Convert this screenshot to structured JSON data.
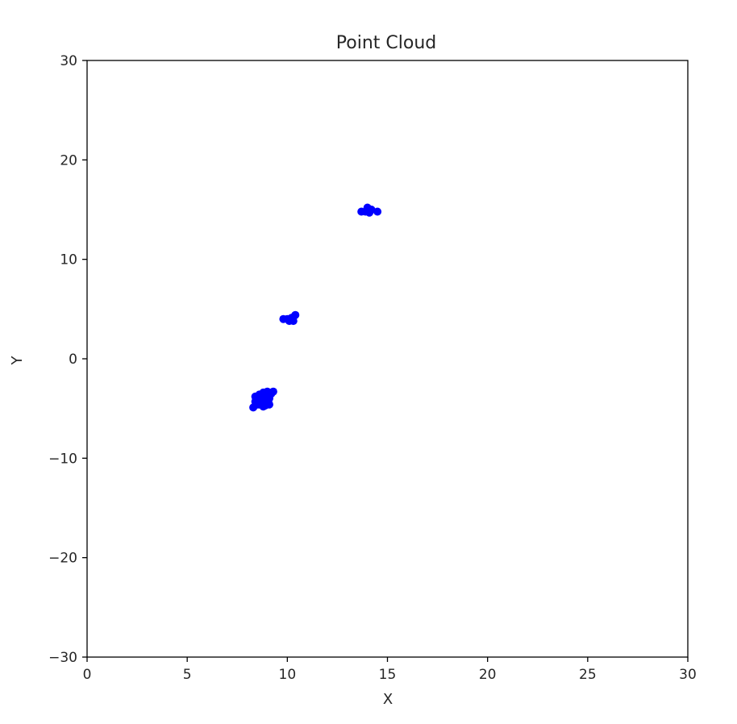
{
  "chart_data": {
    "type": "scatter",
    "title": "Point Cloud",
    "xlabel": "X",
    "ylabel": "Y",
    "xlim": [
      0,
      30
    ],
    "ylim": [
      -30,
      30
    ],
    "xticks": [
      "0",
      "5",
      "10",
      "15",
      "20",
      "25",
      "30"
    ],
    "yticks": [
      "30",
      "20",
      "10",
      "0",
      "−10",
      "−20",
      "−30"
    ],
    "grid": false,
    "color": "#0000ff",
    "series": [
      {
        "points": [
          [
            8.3,
            -4.9
          ],
          [
            8.4,
            -4.3
          ],
          [
            8.4,
            -3.8
          ],
          [
            8.6,
            -4.6
          ],
          [
            8.6,
            -3.6
          ],
          [
            8.7,
            -4.1
          ],
          [
            8.8,
            -3.4
          ],
          [
            8.8,
            -4.8
          ],
          [
            8.9,
            -3.9
          ],
          [
            9.0,
            -4.4
          ],
          [
            9.0,
            -3.3
          ],
          [
            9.1,
            -4.0
          ],
          [
            9.1,
            -4.6
          ],
          [
            9.2,
            -3.5
          ],
          [
            9.3,
            -3.3
          ],
          [
            8.5,
            -4.6
          ],
          [
            8.7,
            -4.4
          ],
          [
            8.9,
            -4.7
          ],
          [
            9.1,
            -3.8
          ],
          [
            8.5,
            -3.9
          ],
          [
            9.8,
            4.0
          ],
          [
            10.0,
            4.0
          ],
          [
            10.1,
            3.8
          ],
          [
            10.2,
            4.1
          ],
          [
            10.3,
            3.8
          ],
          [
            10.4,
            4.4
          ],
          [
            10.3,
            4.2
          ],
          [
            13.7,
            14.8
          ],
          [
            13.9,
            14.8
          ],
          [
            14.0,
            15.2
          ],
          [
            14.1,
            14.7
          ],
          [
            14.2,
            15.0
          ],
          [
            14.5,
            14.8
          ]
        ]
      }
    ]
  }
}
